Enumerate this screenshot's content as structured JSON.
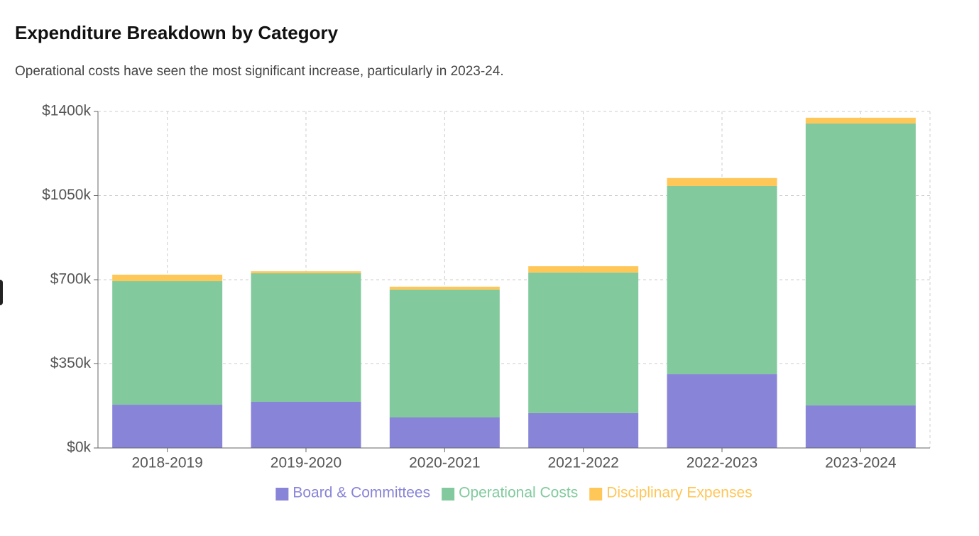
{
  "chart_data": {
    "type": "stacked_bar",
    "title": "Expenditure Breakdown by Category",
    "subtitle": "Operational costs have seen the most significant increase, particularly in 2023-24.",
    "categories": [
      "2018-2019",
      "2019-2020",
      "2020-2021",
      "2021-2022",
      "2022-2023",
      "2023-2024"
    ],
    "series": [
      {
        "name": "Board & Committees",
        "color": "#8884d8",
        "values": [
          180,
          192,
          127,
          145,
          307,
          177
        ]
      },
      {
        "name": "Operational Costs",
        "color": "#82ca9d",
        "values": [
          514,
          535,
          532,
          585,
          783,
          1173
        ]
      },
      {
        "name": "Disciplinary Expenses",
        "color": "#ffc658",
        "values": [
          27,
          8,
          12,
          26,
          33,
          24
        ]
      }
    ],
    "ylim": [
      0,
      1400
    ],
    "yticks": [
      {
        "value": 0,
        "label": "$0k"
      },
      {
        "value": 350,
        "label": "$350k"
      },
      {
        "value": 700,
        "label": "$700k"
      },
      {
        "value": 1050,
        "label": "$1050k"
      },
      {
        "value": 1400,
        "label": "$1400k"
      }
    ],
    "grid": true
  }
}
